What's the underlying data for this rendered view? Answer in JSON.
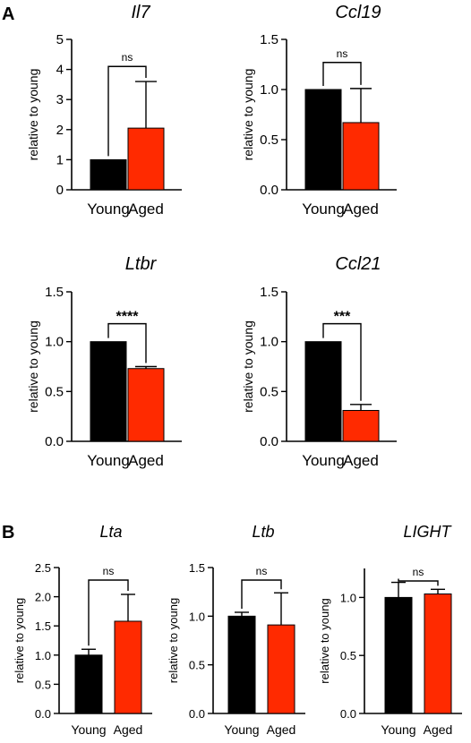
{
  "panels": {
    "a": "A",
    "b": "B"
  },
  "colors": {
    "young": "#000000",
    "aged": "#ff2a00",
    "axis": "#000000"
  },
  "chart_data": [
    {
      "type": "bar",
      "title": "Il7",
      "ylabel": "relative to young",
      "categories": [
        "Young",
        "Aged"
      ],
      "values": [
        1.0,
        2.05
      ],
      "error": [
        0,
        1.55
      ],
      "ylim": [
        0,
        5
      ],
      "yticks": [
        "0",
        "1",
        "2",
        "3",
        "4",
        "5"
      ],
      "significance": "ns",
      "grid": false
    },
    {
      "type": "bar",
      "title": "Ccl19",
      "ylabel": "relative to young",
      "categories": [
        "Young",
        "Aged"
      ],
      "values": [
        1.0,
        0.67
      ],
      "error": [
        0,
        0.34
      ],
      "ylim": [
        0,
        1.5
      ],
      "yticks": [
        "0.0",
        "0.5",
        "1.0",
        "1.5"
      ],
      "significance": "ns",
      "grid": false
    },
    {
      "type": "bar",
      "title": "Ltbr",
      "ylabel": "relative to young",
      "categories": [
        "Young",
        "Aged"
      ],
      "values": [
        1.0,
        0.73
      ],
      "error": [
        0,
        0.02
      ],
      "ylim": [
        0,
        1.5
      ],
      "yticks": [
        "0.0",
        "0.5",
        "1.0",
        "1.5"
      ],
      "significance": "****",
      "grid": false
    },
    {
      "type": "bar",
      "title": "Ccl21",
      "ylabel": "relative to young",
      "categories": [
        "Young",
        "Aged"
      ],
      "values": [
        1.0,
        0.31
      ],
      "error": [
        0,
        0.06
      ],
      "ylim": [
        0,
        1.5
      ],
      "yticks": [
        "0.0",
        "0.5",
        "1.0",
        "1.5"
      ],
      "significance": "***",
      "grid": false
    },
    {
      "type": "bar",
      "title": "Lta",
      "ylabel": "relative to young",
      "categories": [
        "Young",
        "Aged"
      ],
      "values": [
        1.0,
        1.58
      ],
      "error": [
        0.1,
        0.46
      ],
      "ylim": [
        0,
        2.5
      ],
      "yticks": [
        "0.0",
        "0.5",
        "1.0",
        "1.5",
        "2.0",
        "2.5"
      ],
      "significance": "ns",
      "grid": false
    },
    {
      "type": "bar",
      "title": "Ltb",
      "ylabel": "relative to young",
      "categories": [
        "Young",
        "Aged"
      ],
      "values": [
        1.0,
        0.91
      ],
      "error": [
        0.04,
        0.33
      ],
      "ylim": [
        0,
        1.5
      ],
      "yticks": [
        "0.0",
        "0.5",
        "1.0",
        "1.5"
      ],
      "significance": "ns",
      "grid": false
    },
    {
      "type": "bar",
      "title": "LIGHT",
      "ylabel": "relative to young",
      "categories": [
        "Young",
        "Aged"
      ],
      "values": [
        1.0,
        1.03
      ],
      "error": [
        0.13,
        0.04
      ],
      "ylim": [
        0,
        1.25
      ],
      "yticks": [
        "0.0",
        "0.5",
        "1.0"
      ],
      "significance": "ns",
      "grid": false
    }
  ]
}
